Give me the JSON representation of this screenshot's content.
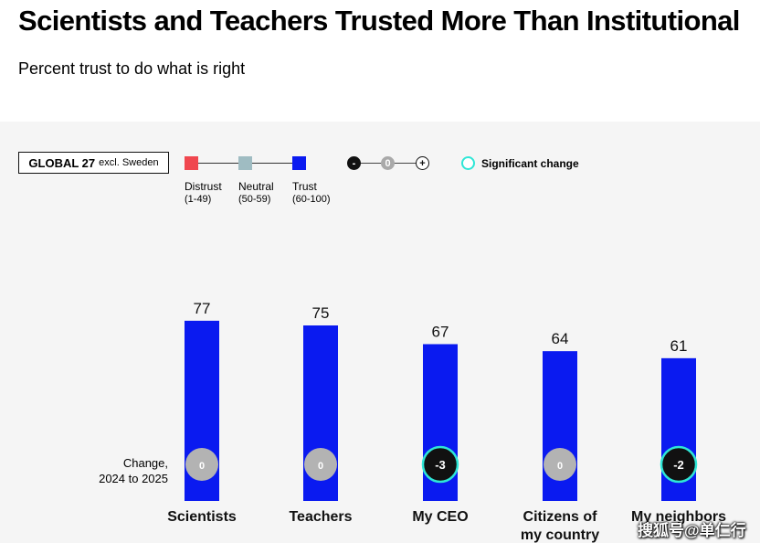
{
  "title": "Scientists and Teachers Trusted More Than Institutional",
  "subtitle": "Percent trust to do what is right",
  "scope": {
    "bold": "GLOBAL 27",
    "small": "excl. Sweden"
  },
  "legend": {
    "items": [
      {
        "label": "Distrust",
        "range": "(1-49)",
        "color": "#f0474f"
      },
      {
        "label": "Neutral",
        "range": "(50-59)",
        "color": "#9fbcc2"
      },
      {
        "label": "Trust",
        "range": "(60-100)",
        "color": "#0a1af0"
      }
    ],
    "change_scale": [
      "-",
      "0",
      "+"
    ],
    "significant_label": "Significant change"
  },
  "change_label": [
    "Change,",
    "2024 to 2025"
  ],
  "watermark": "搜狐号@单仁行",
  "colors": {
    "trust": "#0a1af0",
    "neutral_change": "#b3b3b3",
    "significant_change": "#111111",
    "significant_ring": "#2ee6d6",
    "panel": "#f5f5f5"
  },
  "chart_data": {
    "type": "bar",
    "categories": [
      "Scientists",
      "Teachers",
      "My CEO",
      "Citizens of my country",
      "My neighbors"
    ],
    "category_lines": [
      [
        "Scientists"
      ],
      [
        "Teachers"
      ],
      [
        "My CEO"
      ],
      [
        "Citizens of",
        "my country"
      ],
      [
        "My neighbors"
      ]
    ],
    "values": [
      77,
      75,
      67,
      64,
      61
    ],
    "change": [
      0,
      0,
      -3,
      0,
      -2
    ],
    "change_labels": [
      "0",
      "0",
      "-3",
      "0",
      "-2"
    ],
    "significant": [
      false,
      false,
      true,
      false,
      true
    ],
    "ylim": [
      0,
      100
    ]
  }
}
